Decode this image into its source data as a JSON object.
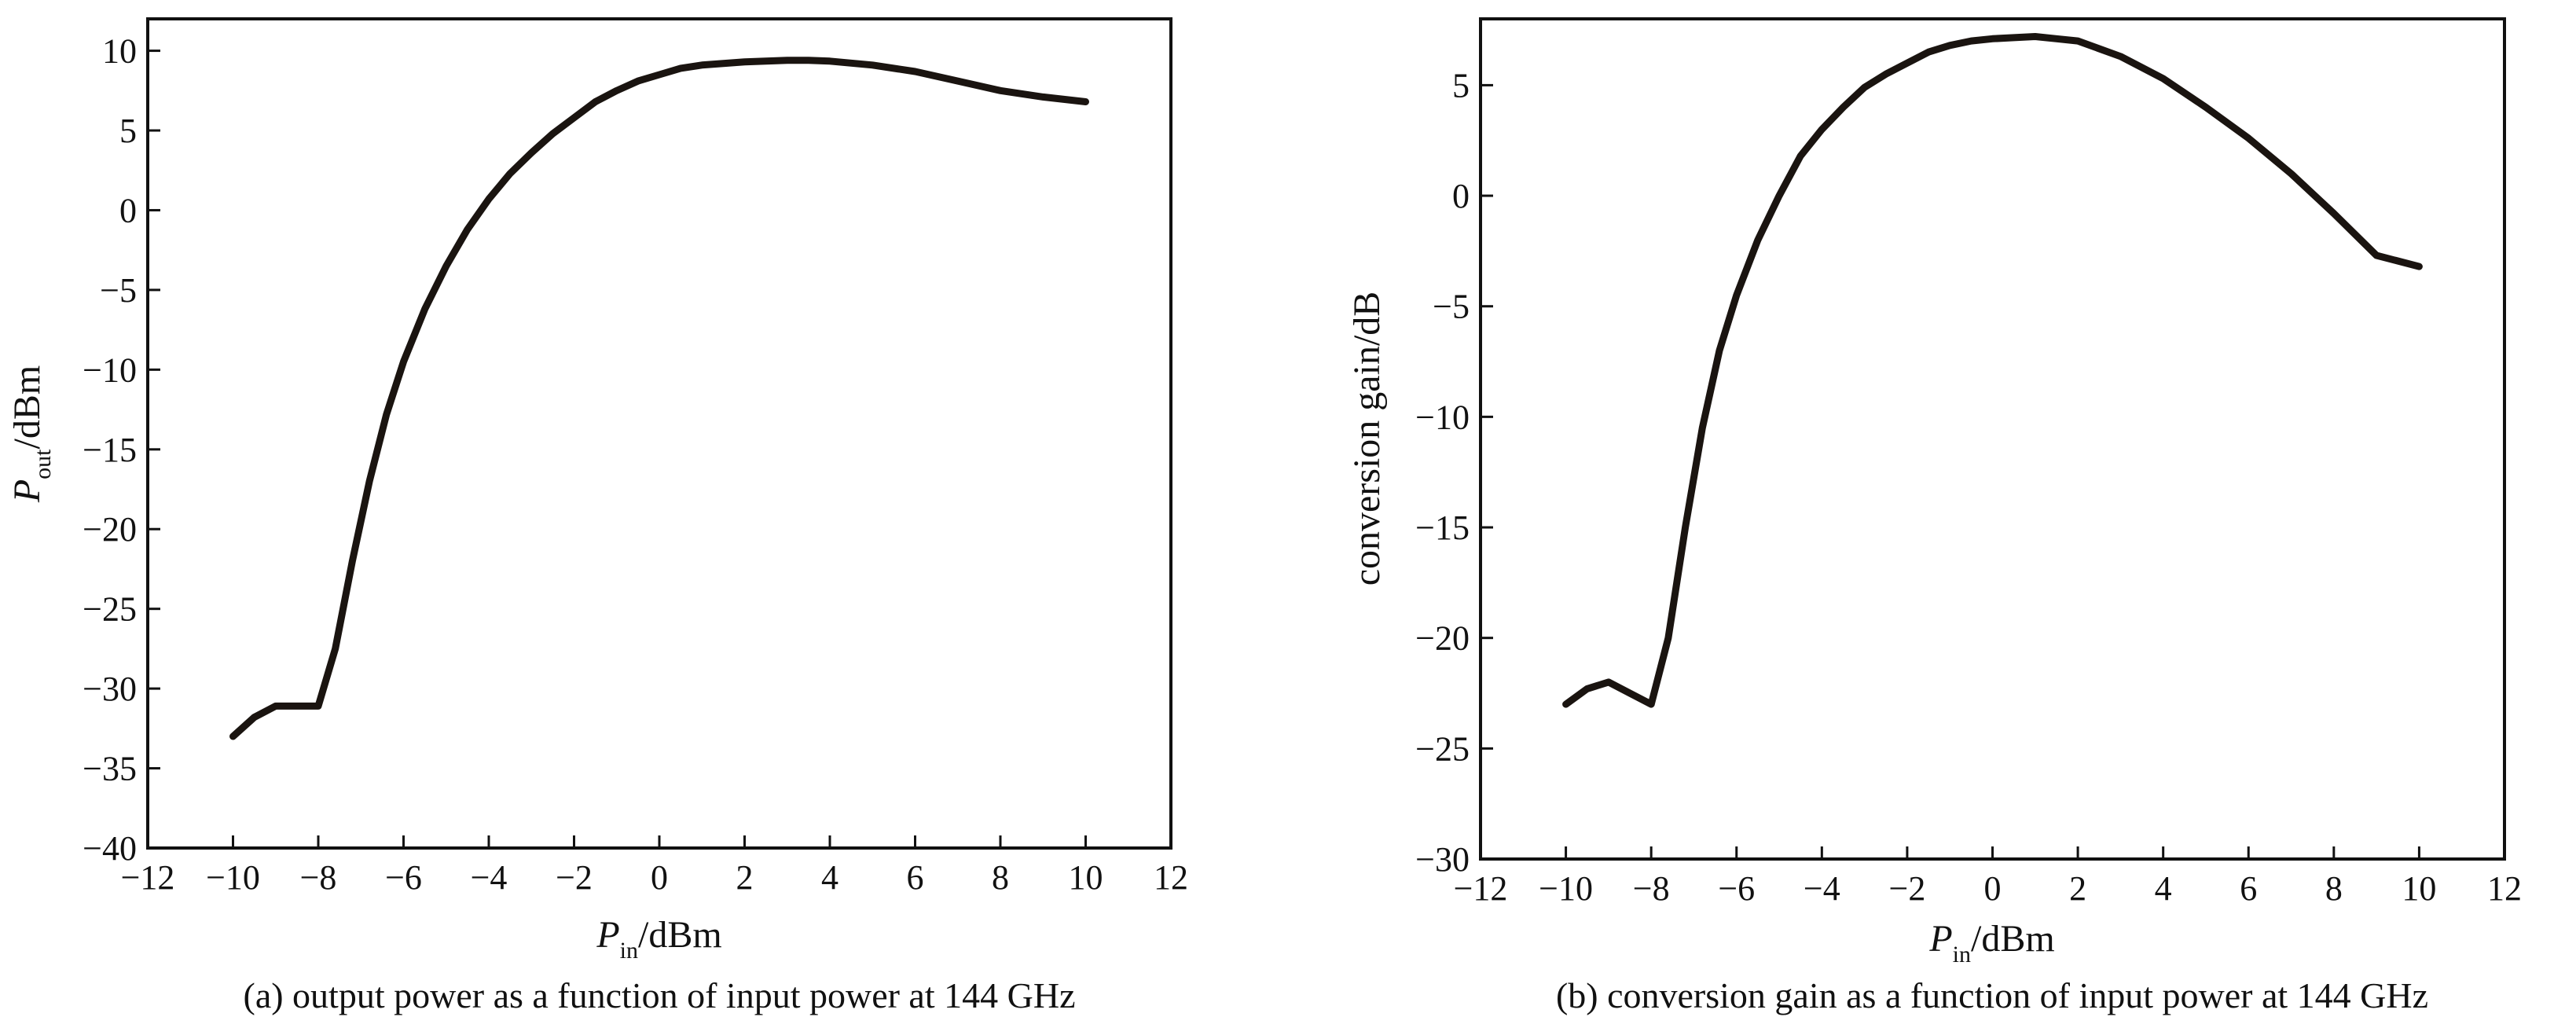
{
  "chart_data": [
    {
      "type": "line",
      "caption": "(a) output power as a function of input power at 144 GHz",
      "xlabel": {
        "main": "P",
        "sub": "in",
        "unit": "/dBm"
      },
      "ylabel": {
        "main": "P",
        "sub": "out",
        "unit": "/dBm"
      },
      "xlim": [
        -12,
        12
      ],
      "ylim": [
        -40,
        12
      ],
      "xticks": [
        -12,
        -10,
        -8,
        -6,
        -4,
        -2,
        0,
        2,
        4,
        6,
        8,
        10,
        12
      ],
      "yticks": [
        -40,
        -35,
        -30,
        -25,
        -20,
        -15,
        -10,
        -5,
        0,
        5,
        10
      ],
      "tick_labels_x": [
        "−12",
        "−10",
        "−8",
        "−6",
        "−4",
        "−2",
        "0",
        "2",
        "4",
        "6",
        "8",
        "10",
        "12"
      ],
      "tick_labels_y": [
        "−40",
        "−35",
        "−30",
        "−25",
        "−20",
        "−15",
        "−10",
        "−5",
        "0",
        "5",
        "10"
      ],
      "grid": false,
      "color": "#1a1410",
      "series": [
        {
          "x": [
            -10,
            -9.5,
            -9,
            -8.5,
            -8,
            -7.6,
            -7.2,
            -6.8,
            -6.4,
            -6,
            -5.5,
            -5,
            -4.5,
            -4,
            -3.5,
            -3,
            -2.5,
            -2,
            -1.5,
            -1,
            -0.5,
            0,
            0.5,
            1,
            1.5,
            2,
            2.5,
            3,
            3.5,
            4,
            5,
            6,
            7,
            8,
            9,
            10
          ],
          "y": [
            -33,
            -31.8,
            -31.1,
            -31.1,
            -31.1,
            -27.5,
            -22,
            -17,
            -12.8,
            -9.5,
            -6.2,
            -3.5,
            -1.2,
            0.7,
            2.3,
            3.6,
            4.8,
            5.8,
            6.8,
            7.5,
            8.1,
            8.5,
            8.9,
            9.1,
            9.2,
            9.3,
            9.35,
            9.4,
            9.4,
            9.35,
            9.1,
            8.7,
            8.1,
            7.5,
            7.1,
            6.8
          ]
        }
      ]
    },
    {
      "type": "line",
      "caption": "(b) conversion gain as a function of input power at 144 GHz",
      "xlabel": {
        "main": "P",
        "sub": "in",
        "unit": "/dBm"
      },
      "ylabel": {
        "main": "conversion gain/dB",
        "sub": "",
        "unit": ""
      },
      "xlim": [
        -12,
        12
      ],
      "ylim": [
        -30,
        8
      ],
      "xticks": [
        -12,
        -10,
        -8,
        -6,
        -4,
        -2,
        0,
        2,
        4,
        6,
        8,
        10,
        12
      ],
      "yticks": [
        -30,
        -25,
        -20,
        -15,
        -10,
        -5,
        0,
        5
      ],
      "tick_labels_x": [
        "−12",
        "−10",
        "−8",
        "−6",
        "−4",
        "−2",
        "0",
        "2",
        "4",
        "6",
        "8",
        "10",
        "12"
      ],
      "tick_labels_y": [
        "−30",
        "−25",
        "−20",
        "−15",
        "−10",
        "−5",
        "0",
        "5"
      ],
      "grid": false,
      "color": "#1a1410",
      "series": [
        {
          "x": [
            -10,
            -9.5,
            -9,
            -8.5,
            -8,
            -7.6,
            -7.2,
            -6.8,
            -6.4,
            -6,
            -5.5,
            -5,
            -4.5,
            -4,
            -3.5,
            -3,
            -2.5,
            -2,
            -1.5,
            -1,
            -0.5,
            0,
            0.5,
            1,
            1.5,
            2,
            3,
            4,
            5,
            6,
            7,
            8,
            9,
            10
          ],
          "y": [
            -23,
            -22.3,
            -22,
            -22.5,
            -23,
            -20,
            -15,
            -10.5,
            -7,
            -4.5,
            -2,
            0,
            1.8,
            3,
            4,
            4.9,
            5.5,
            6,
            6.5,
            6.8,
            7,
            7.1,
            7.15,
            7.2,
            7.1,
            7,
            6.3,
            5.3,
            4,
            2.6,
            1,
            -0.8,
            -2.7,
            -3.2
          ]
        }
      ]
    }
  ]
}
